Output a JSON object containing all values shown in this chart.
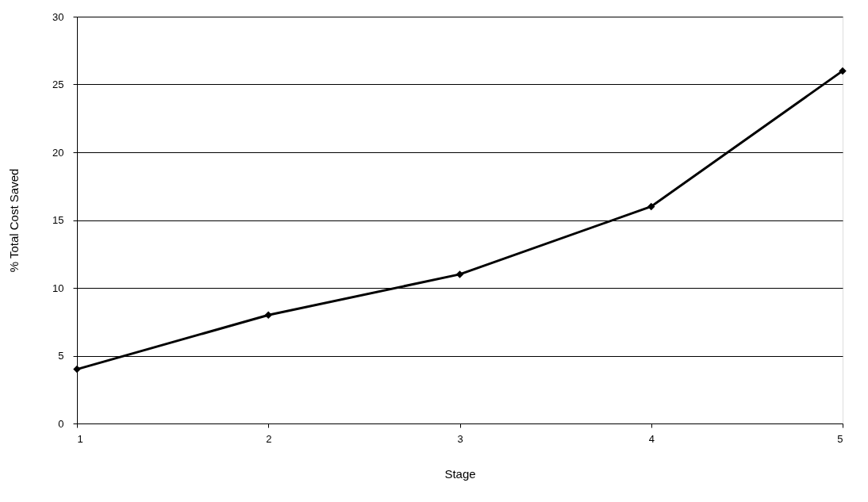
{
  "chart_data": {
    "type": "line",
    "xlabel": "Stage",
    "ylabel": "% Total Cost Saved",
    "x": [
      1,
      2,
      3,
      4,
      5
    ],
    "series": [
      {
        "color": "#000000",
        "values": [
          4,
          8,
          11,
          16,
          26
        ]
      }
    ],
    "xlim": [
      1,
      5
    ],
    "xticks": [
      1,
      2,
      3,
      4,
      5
    ],
    "ylim": [
      0,
      30
    ],
    "yticks": [
      0,
      5,
      10,
      15,
      20,
      25,
      30
    ],
    "grid": "y",
    "legend": false,
    "marker": "diamond",
    "line_style": "solid"
  }
}
